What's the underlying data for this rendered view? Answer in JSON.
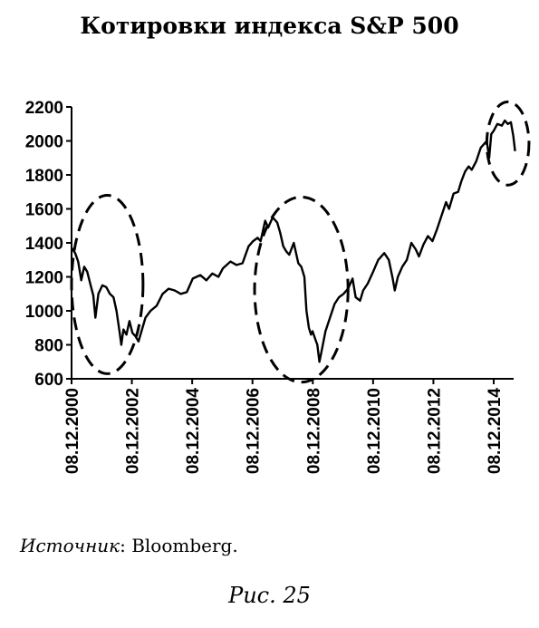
{
  "chart_data": {
    "type": "line",
    "title": "Котировки индекса S&P 500",
    "xlabel": "",
    "ylabel": "",
    "ylim": [
      600,
      2200
    ],
    "yticks": [
      600,
      800,
      1000,
      1200,
      1400,
      1600,
      1800,
      2000,
      2200
    ],
    "xlim": [
      2000.93,
      2015.0
    ],
    "xticks": [
      {
        "value": 2000.93,
        "label": "08.12.2000"
      },
      {
        "value": 2002.93,
        "label": "08.12.2002"
      },
      {
        "value": 2004.93,
        "label": "08.12.2004"
      },
      {
        "value": 2006.93,
        "label": "08.12.2006"
      },
      {
        "value": 2008.93,
        "label": "08.12.2008"
      },
      {
        "value": 2010.93,
        "label": "08.12.2010"
      },
      {
        "value": 2012.93,
        "label": "08.12.2012"
      },
      {
        "value": 2014.93,
        "label": "08.12.2014"
      }
    ],
    "grid": false,
    "series": [
      {
        "name": "",
        "color": "#000000",
        "points": [
          [
            2000.93,
            1370
          ],
          [
            2001.05,
            1340
          ],
          [
            2001.15,
            1290
          ],
          [
            2001.25,
            1180
          ],
          [
            2001.35,
            1260
          ],
          [
            2001.45,
            1230
          ],
          [
            2001.55,
            1160
          ],
          [
            2001.65,
            1090
          ],
          [
            2001.72,
            960
          ],
          [
            2001.82,
            1100
          ],
          [
            2001.95,
            1150
          ],
          [
            2002.08,
            1140
          ],
          [
            2002.2,
            1100
          ],
          [
            2002.32,
            1080
          ],
          [
            2002.42,
            1000
          ],
          [
            2002.52,
            880
          ],
          [
            2002.58,
            800
          ],
          [
            2002.65,
            890
          ],
          [
            2002.75,
            860
          ],
          [
            2002.85,
            940
          ],
          [
            2002.95,
            870
          ],
          [
            2003.05,
            850
          ],
          [
            2003.15,
            820
          ],
          [
            2003.25,
            880
          ],
          [
            2003.38,
            960
          ],
          [
            2003.55,
            1000
          ],
          [
            2003.75,
            1030
          ],
          [
            2003.95,
            1100
          ],
          [
            2004.15,
            1130
          ],
          [
            2004.35,
            1120
          ],
          [
            2004.55,
            1100
          ],
          [
            2004.75,
            1110
          ],
          [
            2004.95,
            1190
          ],
          [
            2005.2,
            1210
          ],
          [
            2005.4,
            1180
          ],
          [
            2005.6,
            1220
          ],
          [
            2005.8,
            1200
          ],
          [
            2005.95,
            1250
          ],
          [
            2006.2,
            1290
          ],
          [
            2006.4,
            1270
          ],
          [
            2006.6,
            1280
          ],
          [
            2006.8,
            1380
          ],
          [
            2006.95,
            1410
          ],
          [
            2007.1,
            1430
          ],
          [
            2007.2,
            1410
          ],
          [
            2007.35,
            1530
          ],
          [
            2007.45,
            1490
          ],
          [
            2007.6,
            1550
          ],
          [
            2007.75,
            1520
          ],
          [
            2007.85,
            1460
          ],
          [
            2007.95,
            1380
          ],
          [
            2008.05,
            1350
          ],
          [
            2008.15,
            1330
          ],
          [
            2008.3,
            1400
          ],
          [
            2008.45,
            1280
          ],
          [
            2008.55,
            1260
          ],
          [
            2008.65,
            1200
          ],
          [
            2008.72,
            1000
          ],
          [
            2008.8,
            900
          ],
          [
            2008.87,
            860
          ],
          [
            2008.92,
            880
          ],
          [
            2009.0,
            840
          ],
          [
            2009.08,
            800
          ],
          [
            2009.15,
            700
          ],
          [
            2009.22,
            760
          ],
          [
            2009.35,
            880
          ],
          [
            2009.5,
            960
          ],
          [
            2009.65,
            1040
          ],
          [
            2009.8,
            1080
          ],
          [
            2009.95,
            1100
          ],
          [
            2010.1,
            1130
          ],
          [
            2010.25,
            1190
          ],
          [
            2010.35,
            1080
          ],
          [
            2010.5,
            1060
          ],
          [
            2010.6,
            1120
          ],
          [
            2010.75,
            1160
          ],
          [
            2010.93,
            1230
          ],
          [
            2011.1,
            1300
          ],
          [
            2011.3,
            1340
          ],
          [
            2011.45,
            1300
          ],
          [
            2011.58,
            1190
          ],
          [
            2011.65,
            1120
          ],
          [
            2011.75,
            1200
          ],
          [
            2011.9,
            1260
          ],
          [
            2012.05,
            1300
          ],
          [
            2012.2,
            1400
          ],
          [
            2012.35,
            1360
          ],
          [
            2012.45,
            1320
          ],
          [
            2012.6,
            1390
          ],
          [
            2012.75,
            1440
          ],
          [
            2012.9,
            1410
          ],
          [
            2013.05,
            1480
          ],
          [
            2013.2,
            1560
          ],
          [
            2013.35,
            1640
          ],
          [
            2013.45,
            1600
          ],
          [
            2013.6,
            1690
          ],
          [
            2013.75,
            1700
          ],
          [
            2013.85,
            1760
          ],
          [
            2013.98,
            1820
          ],
          [
            2014.1,
            1850
          ],
          [
            2014.2,
            1830
          ],
          [
            2014.35,
            1880
          ],
          [
            2014.5,
            1960
          ],
          [
            2014.6,
            1980
          ],
          [
            2014.7,
            2000
          ],
          [
            2014.78,
            1900
          ],
          [
            2014.85,
            2040
          ],
          [
            2014.93,
            2060
          ],
          [
            2015.05,
            2100
          ],
          [
            2015.2,
            2090
          ],
          [
            2015.3,
            2120
          ],
          [
            2015.4,
            2100
          ],
          [
            2015.5,
            2110
          ],
          [
            2015.58,
            2030
          ],
          [
            2015.64,
            1940
          ]
        ]
      }
    ],
    "annotations": [
      {
        "type": "dashed-ellipse",
        "x_range": [
          2000.93,
          2003.3
        ],
        "y_range": [
          630,
          1680
        ]
      },
      {
        "type": "dashed-ellipse",
        "x_range": [
          2007.0,
          2010.1
        ],
        "y_range": [
          580,
          1670
        ]
      },
      {
        "type": "dashed-ellipse",
        "x_range": [
          2014.7,
          2016.1
        ],
        "y_range": [
          1740,
          2230
        ]
      }
    ]
  },
  "source": {
    "label": "Источник",
    "text": ": Bloomberg."
  },
  "figure_caption": "Рис. 25"
}
